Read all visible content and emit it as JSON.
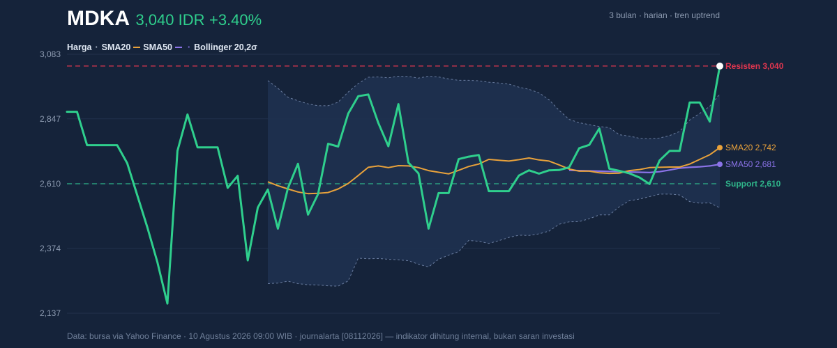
{
  "header": {
    "ticker": "MDKA",
    "price": "3,040 IDR",
    "change": "+3.40%",
    "meta": "3 bulan · harian · tren uptrend"
  },
  "legend": {
    "price": "Harga",
    "sma20": "SMA20",
    "sma50": "SMA50",
    "bollinger": "Bollinger 20,2σ"
  },
  "footer": "Data: bursa via Yahoo Finance · 10 Agustus 2026 09:00 WIB · journalarta [08112026] — indikator dihitung internal, bukan saran investasi",
  "colors": {
    "background": "#15233a",
    "price": "#2fcf8d",
    "sma20": "#e9a23b",
    "sma50": "#8b73e8",
    "band_fill": "#1e3150",
    "band_line": "#6a7da0",
    "resistance": "#e0364f",
    "support": "#2fb58a",
    "grid": "#22324c",
    "axis_text": "#8d9bb1"
  },
  "chart_data": {
    "type": "line",
    "ylim": [
      2137,
      3083
    ],
    "yticks": [
      {
        "value": 2137,
        "label": "2,137"
      },
      {
        "value": 2374,
        "label": "2,374"
      },
      {
        "value": 2610,
        "label": "2,610"
      },
      {
        "value": 2847,
        "label": "2,847"
      },
      {
        "value": 3083,
        "label": "3,083"
      }
    ],
    "grid": "horizontal",
    "n_points": 66,
    "price": [
      2873,
      2873,
      2751,
      2751,
      2751,
      2751,
      2685,
      2568,
      2451,
      2324,
      2172,
      2730,
      2863,
      2743,
      2743,
      2743,
      2595,
      2639,
      2330,
      2523,
      2589,
      2446,
      2594,
      2683,
      2497,
      2572,
      2756,
      2746,
      2866,
      2930,
      2936,
      2832,
      2747,
      2901,
      2687,
      2648,
      2446,
      2576,
      2576,
      2700,
      2709,
      2715,
      2583,
      2583,
      2583,
      2640,
      2659,
      2647,
      2659,
      2660,
      2670,
      2740,
      2752,
      2812,
      2665,
      2657,
      2648,
      2633,
      2609,
      2695,
      2730,
      2730,
      2907,
      2907,
      2837,
      3040
    ],
    "sma20": [
      null,
      null,
      null,
      null,
      null,
      null,
      null,
      null,
      null,
      null,
      null,
      null,
      null,
      null,
      null,
      null,
      null,
      null,
      null,
      null,
      2617,
      2603,
      2591,
      2580,
      2574,
      2575,
      2578,
      2591,
      2611,
      2640,
      2670,
      2675,
      2669,
      2676,
      2675,
      2669,
      2658,
      2652,
      2646,
      2659,
      2673,
      2682,
      2699,
      2696,
      2693,
      2698,
      2704,
      2697,
      2693,
      2679,
      2664,
      2656,
      2656,
      2650,
      2648,
      2649,
      2658,
      2662,
      2669,
      2670,
      2671,
      2671,
      2682,
      2699,
      2716,
      2742
    ],
    "sma50": [
      null,
      null,
      null,
      null,
      null,
      null,
      null,
      null,
      null,
      null,
      null,
      null,
      null,
      null,
      null,
      null,
      null,
      null,
      null,
      null,
      null,
      null,
      null,
      null,
      null,
      null,
      null,
      null,
      null,
      null,
      null,
      null,
      null,
      null,
      null,
      null,
      null,
      null,
      null,
      null,
      null,
      null,
      null,
      null,
      null,
      null,
      null,
      null,
      null,
      null,
      2659,
      2658,
      2657,
      2656,
      2655,
      2654,
      2653,
      2652,
      2651,
      2654,
      2660,
      2667,
      2670,
      2672,
      2675,
      2681
    ],
    "bollinger_upper": [
      null,
      null,
      null,
      null,
      null,
      null,
      null,
      null,
      null,
      null,
      null,
      null,
      null,
      null,
      null,
      null,
      null,
      null,
      null,
      null,
      2987,
      2959,
      2926,
      2913,
      2902,
      2895,
      2895,
      2908,
      2945,
      2976,
      2999,
      3000,
      2997,
      3003,
      3002,
      2996,
      3003,
      3000,
      2993,
      2988,
      2988,
      2986,
      2981,
      2978,
      2974,
      2963,
      2955,
      2942,
      2917,
      2878,
      2845,
      2833,
      2826,
      2819,
      2815,
      2789,
      2784,
      2776,
      2774,
      2777,
      2786,
      2801,
      2843,
      2867,
      2893,
      2938
    ],
    "bollinger_lower": [
      null,
      null,
      null,
      null,
      null,
      null,
      null,
      null,
      null,
      null,
      null,
      null,
      null,
      null,
      null,
      null,
      null,
      null,
      null,
      null,
      2245,
      2247,
      2254,
      2245,
      2241,
      2240,
      2237,
      2236,
      2255,
      2338,
      2336,
      2337,
      2334,
      2332,
      2329,
      2316,
      2306,
      2334,
      2349,
      2362,
      2403,
      2400,
      2392,
      2402,
      2414,
      2422,
      2421,
      2427,
      2437,
      2462,
      2471,
      2472,
      2482,
      2496,
      2496,
      2526,
      2548,
      2554,
      2563,
      2572,
      2572,
      2569,
      2545,
      2539,
      2540,
      2522
    ]
  },
  "annotations": {
    "resistance": {
      "value": 3040,
      "label": "Resisten 3,040"
    },
    "support": {
      "value": 2610,
      "label": "Support 2,610"
    },
    "sma20_end": {
      "value": 2742,
      "label": "SMA20 2,742"
    },
    "sma50_end": {
      "value": 2681,
      "label": "SMA50 2,681"
    }
  }
}
